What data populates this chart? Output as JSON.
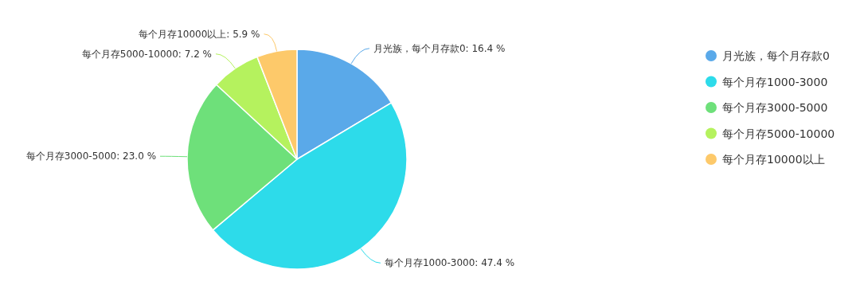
{
  "chart_data": {
    "type": "pie",
    "categories": [
      "月光族，每个月存款0",
      "每个月存1000-3000",
      "每个月存3000-5000",
      "每个月存5000-10000",
      "每个月存10000以上"
    ],
    "values": [
      16.4,
      47.4,
      23.0,
      7.2,
      5.9
    ],
    "value_labels": [
      "月光族，每个月存款0: 16.4 %",
      "每个月存1000-3000: 47.4 %",
      "每个月存3000-5000: 23.0 %",
      "每个月存5000-10000: 7.2 %",
      "每个月存10000以上: 5.9 %"
    ],
    "colors": [
      "#5aa9e9",
      "#2ddbea",
      "#6ee07a",
      "#b5f25e",
      "#fdc96a"
    ],
    "legend": "right"
  }
}
